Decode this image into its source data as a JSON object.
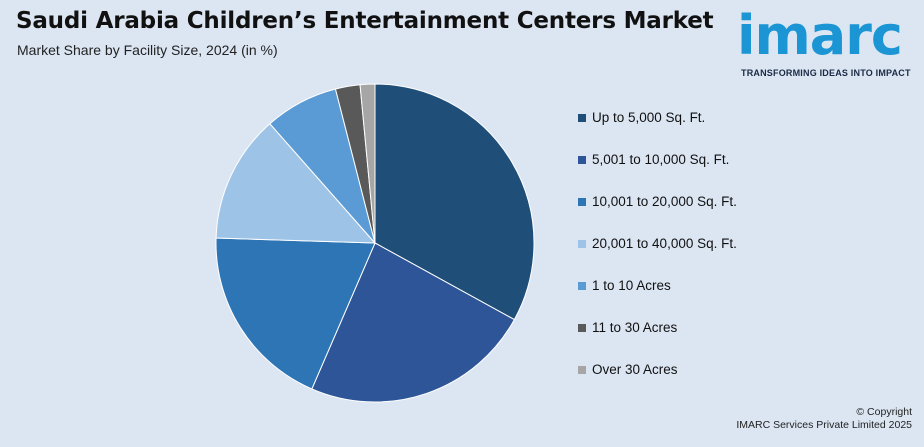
{
  "header": {
    "title": "Saudi Arabia Children’s Entertainment Centers Market",
    "subtitle": "Market Share by Facility Size, 2024 (in %)"
  },
  "logo": {
    "word": "imarc",
    "tagline": "TRANSFORMING IDEAS INTO IMPACT"
  },
  "footer": {
    "copyright": "© Copyright",
    "company": "IMARC Services Private Limited 2025"
  },
  "chart_data": {
    "type": "pie",
    "categories": [
      "Up to 5,000 Sq. Ft.",
      "5,001 to 10,000 Sq. Ft.",
      "10,001 to 20,000 Sq. Ft.",
      "20,001 to 40,000 Sq. Ft.",
      "1 to 10 Acres",
      "11 to 30 Acres",
      "Over 30 Acres"
    ],
    "values": [
      33.0,
      23.5,
      19.0,
      13.0,
      7.5,
      2.5,
      1.5
    ],
    "colors": [
      "#1f4e79",
      "#2e5597",
      "#2e75b6",
      "#9dc3e6",
      "#5b9bd5",
      "#595959",
      "#a6a6a6"
    ],
    "legend_position": "right"
  }
}
